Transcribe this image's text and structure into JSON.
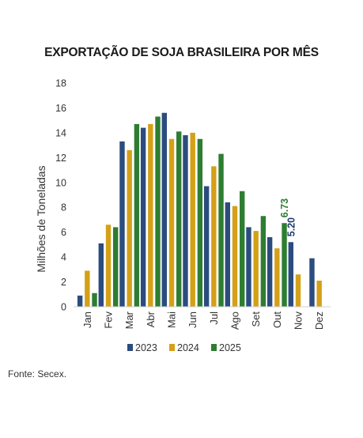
{
  "chart_data": {
    "type": "bar",
    "title": "EXPORTAÇÃO DE SOJA BRASILEIRA POR MÊS",
    "ylabel": "Milhões de Toneladas",
    "xlabel": "",
    "ylim": [
      0,
      18
    ],
    "yticks": [
      0,
      2,
      4,
      6,
      8,
      10,
      12,
      14,
      16,
      18
    ],
    "categories": [
      "Jan",
      "Fev",
      "Mar",
      "Abr",
      "Mai",
      "Jun",
      "Jul",
      "Ago",
      "Set",
      "Out",
      "Nov",
      "Dez"
    ],
    "series": [
      {
        "name": "2023",
        "color": "#2B4C7E",
        "values": [
          0.9,
          5.1,
          13.3,
          14.4,
          15.6,
          13.8,
          9.7,
          8.4,
          6.4,
          5.6,
          5.2,
          3.9
        ]
      },
      {
        "name": "2024",
        "color": "#D4A017",
        "values": [
          2.9,
          6.6,
          12.6,
          14.7,
          13.5,
          14.0,
          11.3,
          8.1,
          6.1,
          4.7,
          2.6,
          2.1
        ]
      },
      {
        "name": "2025",
        "color": "#2E7D32",
        "values": [
          1.1,
          6.4,
          14.7,
          15.3,
          14.1,
          13.5,
          12.3,
          9.3,
          7.3,
          6.73,
          null,
          null
        ]
      }
    ],
    "annotations": [
      {
        "text": "6.73",
        "category": "Out",
        "series": "2025",
        "color": "#2E7D32"
      },
      {
        "text": "5.20",
        "category": "Nov",
        "series": "2023",
        "color": "#1F3A6B"
      }
    ],
    "legend_position": "bottom",
    "grid": false
  },
  "source": "Fonte: Secex."
}
